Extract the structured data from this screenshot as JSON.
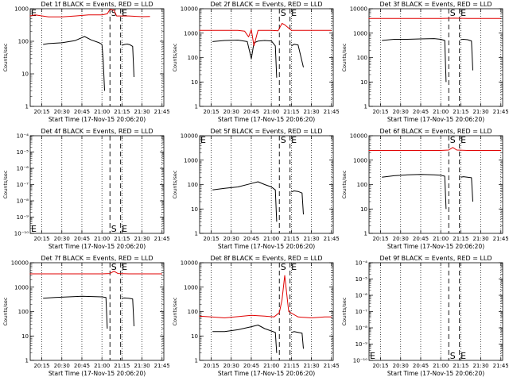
{
  "figure": {
    "xtick_labels": [
      "20:15",
      "20:30",
      "20:45",
      "21:00",
      "21:15",
      "21:30",
      "21:45"
    ],
    "xlabel": "Start Time (17-Nov-15 20:06:20)",
    "ylabel": "Counts/sec"
  },
  "colors": {
    "events": "#000000",
    "lld": "#e00000"
  },
  "chart_data": [
    {
      "type": "line",
      "title": "Det 1f BLACK = Events, RED = LLD",
      "xlim": [
        "20:06:20",
        "21:46:20"
      ],
      "yscale": "log",
      "ylim": [
        1,
        1000
      ],
      "yticks": [
        1,
        10,
        100,
        1000
      ],
      "ytick_labels": [
        "1",
        "10",
        "100",
        "1000"
      ],
      "markers": [
        {
          "label": "S",
          "x": "21:06"
        },
        {
          "label": "E",
          "x": "21:14"
        }
      ],
      "marker_label_position": "top",
      "series": [
        {
          "color": "#000000",
          "x": [
            "20:16",
            "20:20",
            "20:30",
            "20:40",
            "20:47",
            "20:52",
            "20:58",
            "21:00",
            "21:01",
            "21:02",
            "21:03",
            "21:04",
            "21:05",
            "21:09",
            "21:11",
            "21:13",
            "21:15",
            "21:17",
            "21:19",
            "21:21",
            "21:23",
            "21:24"
          ],
          "y": [
            80,
            85,
            90,
            105,
            140,
            110,
            90,
            80,
            25,
            3,
            null,
            null,
            null,
            null,
            null,
            null,
            75,
            80,
            82,
            78,
            70,
            8
          ]
        },
        {
          "color": "#e00000",
          "x": [
            "20:06",
            "20:10",
            "20:20",
            "20:30",
            "20:40",
            "20:50",
            "21:00",
            "21:04",
            "21:06",
            "21:09",
            "21:11",
            "21:14",
            "21:20",
            "21:30",
            "21:36"
          ],
          "y": [
            600,
            650,
            560,
            560,
            600,
            650,
            650,
            700,
            950,
            900,
            600,
            600,
            600,
            570,
            580
          ]
        }
      ]
    },
    {
      "type": "line",
      "title": "Det 2f BLACK = Events, RED = LLD",
      "xlim": [
        "20:06:20",
        "21:46:20"
      ],
      "yscale": "log",
      "ylim": [
        1,
        10000
      ],
      "yticks": [
        1,
        10,
        100,
        1000,
        10000
      ],
      "ytick_labels": [
        "1",
        "10",
        "100",
        "1000",
        "10000"
      ],
      "markers": [
        {
          "label": "S",
          "x": "21:06"
        },
        {
          "label": "E",
          "x": "21:14"
        }
      ],
      "marker_label_position": "top",
      "series": [
        {
          "color": "#000000",
          "x": [
            "20:16",
            "20:25",
            "20:35",
            "20:42",
            "20:45",
            "20:47",
            "20:50",
            "20:55",
            "21:00",
            "21:03",
            "21:04",
            "21:05",
            "21:15",
            "21:17",
            "21:20",
            "21:24"
          ],
          "y": [
            450,
            500,
            520,
            450,
            90,
            400,
            470,
            500,
            480,
            300,
            15,
            null,
            300,
            350,
            330,
            40
          ]
        },
        {
          "color": "#e00000",
          "x": [
            "20:06",
            "20:20",
            "20:35",
            "20:40",
            "20:43",
            "20:45",
            "20:47",
            "20:50",
            "21:00",
            "21:05",
            "21:08",
            "21:10",
            "21:15",
            "21:30",
            "21:45"
          ],
          "y": [
            1300,
            1300,
            1300,
            1200,
            700,
            1400,
            300,
            1300,
            1300,
            1250,
            2500,
            2200,
            1300,
            1300,
            1300
          ]
        }
      ]
    },
    {
      "type": "line",
      "title": "Det 3f BLACK = Events, RED = LLD",
      "xlim": [
        "20:06:20",
        "21:46:20"
      ],
      "yscale": "log",
      "ylim": [
        1,
        10000
      ],
      "yticks": [
        1,
        10,
        100,
        1000,
        10000
      ],
      "ytick_labels": [
        "1",
        "10",
        "100",
        "1000",
        "10000"
      ],
      "markers": [
        {
          "label": "S",
          "x": "21:06"
        },
        {
          "label": "E",
          "x": "21:14"
        }
      ],
      "marker_label_position": "top",
      "series": [
        {
          "color": "#000000",
          "x": [
            "20:16",
            "20:25",
            "20:35",
            "20:45",
            "20:55",
            "21:00",
            "21:03",
            "21:04",
            "21:05",
            "21:15",
            "21:17",
            "21:20",
            "21:23",
            "21:24"
          ],
          "y": [
            500,
            560,
            560,
            580,
            600,
            560,
            500,
            10,
            null,
            550,
            560,
            540,
            480,
            30
          ]
        },
        {
          "color": "#e00000",
          "x": [
            "20:06",
            "20:30",
            "21:00",
            "21:10",
            "21:20",
            "21:45"
          ],
          "y": [
            4000,
            4000,
            4000,
            4100,
            4000,
            4000
          ]
        }
      ]
    },
    {
      "type": "line",
      "title": "Det 4f BLACK = Events, RED = LLD",
      "xlim": [
        "20:06:20",
        "21:46:20"
      ],
      "yscale": "log",
      "ylim": [
        1e-10,
        0.0001
      ],
      "yticks": [
        1e-10,
        1e-09,
        1e-08,
        1e-07,
        1e-06,
        1e-05,
        0.0001
      ],
      "ytick_labels": [
        "10⁻¹⁰",
        "10⁻⁹",
        "10⁻⁸",
        "10⁻⁷",
        "10⁻⁶",
        "10⁻⁵",
        "10⁻⁴"
      ],
      "markers": [
        {
          "label": "S",
          "x": "21:06"
        },
        {
          "label": "E",
          "x": "21:14"
        }
      ],
      "marker_label_position": "bottom",
      "series": []
    },
    {
      "type": "line",
      "title": "Det 5f BLACK = Events, RED = LLD",
      "xlim": [
        "20:06:20",
        "21:46:20"
      ],
      "yscale": "log",
      "ylim": [
        1,
        10000
      ],
      "yticks": [
        1,
        10,
        100,
        1000,
        10000
      ],
      "ytick_labels": [
        "1",
        "10",
        "100",
        "1000",
        "10000"
      ],
      "markers": [
        {
          "label": "S",
          "x": "21:06"
        },
        {
          "label": "E",
          "x": "21:14"
        }
      ],
      "marker_label_position": "top",
      "series": [
        {
          "color": "#000000",
          "x": [
            "20:16",
            "20:25",
            "20:35",
            "20:45",
            "20:50",
            "20:55",
            "21:00",
            "21:03",
            "21:04",
            "21:05",
            "21:15",
            "21:17",
            "21:20",
            "21:23",
            "21:24"
          ],
          "y": [
            60,
            70,
            80,
            110,
            130,
            100,
            80,
            60,
            3,
            null,
            50,
            55,
            52,
            45,
            6
          ]
        }
      ]
    },
    {
      "type": "line",
      "title": "Det 6f BLACK = Events, RED = LLD",
      "xlim": [
        "20:06:20",
        "21:46:20"
      ],
      "yscale": "log",
      "ylim": [
        1,
        10000
      ],
      "yticks": [
        1,
        10,
        100,
        1000,
        10000
      ],
      "ytick_labels": [
        "1",
        "10",
        "100",
        "1000",
        "10000"
      ],
      "markers": [
        {
          "label": "S",
          "x": "21:06"
        },
        {
          "label": "E",
          "x": "21:14"
        }
      ],
      "marker_label_position": "top",
      "series": [
        {
          "color": "#000000",
          "x": [
            "20:16",
            "20:25",
            "20:35",
            "20:45",
            "20:55",
            "21:00",
            "21:03",
            "21:04",
            "21:05",
            "21:15",
            "21:17",
            "21:20",
            "21:23",
            "21:24"
          ],
          "y": [
            200,
            230,
            250,
            260,
            250,
            240,
            220,
            10,
            null,
            200,
            210,
            200,
            190,
            20
          ]
        },
        {
          "color": "#e00000",
          "x": [
            "20:06",
            "20:30",
            "21:00",
            "21:06",
            "21:09",
            "21:12",
            "21:20",
            "21:45"
          ],
          "y": [
            2500,
            2500,
            2500,
            2600,
            3300,
            2600,
            2500,
            2500
          ]
        }
      ]
    },
    {
      "type": "line",
      "title": "Det 7f BLACK = Events, RED = LLD",
      "xlim": [
        "20:06:20",
        "21:46:20"
      ],
      "yscale": "log",
      "ylim": [
        1,
        10000
      ],
      "yticks": [
        1,
        10,
        100,
        1000,
        10000
      ],
      "ytick_labels": [
        "1",
        "10",
        "100",
        "1000",
        "10000"
      ],
      "markers": [
        {
          "label": "S",
          "x": "21:06"
        },
        {
          "label": "E",
          "x": "21:14"
        }
      ],
      "marker_label_position": "top",
      "series": [
        {
          "color": "#000000",
          "x": [
            "20:16",
            "20:25",
            "20:35",
            "20:45",
            "20:55",
            "21:00",
            "21:03",
            "21:04",
            "21:05",
            "21:15",
            "21:17",
            "21:20",
            "21:23",
            "21:24"
          ],
          "y": [
            350,
            380,
            400,
            420,
            410,
            400,
            380,
            20,
            null,
            350,
            360,
            350,
            330,
            25
          ]
        },
        {
          "color": "#e00000",
          "x": [
            "20:06",
            "20:30",
            "21:00",
            "21:06",
            "21:09",
            "21:12",
            "21:20",
            "21:45"
          ],
          "y": [
            3500,
            3500,
            3500,
            3600,
            4500,
            3600,
            3500,
            3500
          ]
        }
      ]
    },
    {
      "type": "line",
      "title": "Det 8f BLACK = Events, RED = LLD",
      "xlim": [
        "20:06:20",
        "21:46:20"
      ],
      "yscale": "log",
      "ylim": [
        1,
        10000
      ],
      "yticks": [
        1,
        10,
        100,
        1000,
        10000
      ],
      "ytick_labels": [
        "1",
        "10",
        "100",
        "1000",
        "10000"
      ],
      "markers": [
        {
          "label": "S",
          "x": "21:06"
        },
        {
          "label": "E",
          "x": "21:14"
        }
      ],
      "marker_label_position": "top",
      "series": [
        {
          "color": "#000000",
          "x": [
            "20:16",
            "20:25",
            "20:35",
            "20:45",
            "20:50",
            "20:55",
            "21:00",
            "21:03",
            "21:04",
            "21:05",
            "21:15",
            "21:17",
            "21:20",
            "21:23",
            "21:24"
          ],
          "y": [
            15,
            15,
            18,
            24,
            28,
            20,
            16,
            14,
            2,
            null,
            14,
            15,
            14,
            13,
            3
          ]
        },
        {
          "color": "#e00000",
          "x": [
            "20:06",
            "20:15",
            "20:25",
            "20:35",
            "20:45",
            "20:55",
            "21:02",
            "21:06",
            "21:08",
            "21:10",
            "21:13",
            "21:20",
            "21:30",
            "21:40",
            "21:45"
          ],
          "y": [
            65,
            60,
            55,
            62,
            70,
            65,
            60,
            90,
            300,
            3000,
            100,
            60,
            55,
            60,
            60
          ]
        }
      ]
    },
    {
      "type": "line",
      "title": "Det 9f BLACK = Events, RED = LLD",
      "xlim": [
        "20:06:20",
        "21:46:20"
      ],
      "yscale": "log",
      "ylim": [
        1e-10,
        0.0001
      ],
      "yticks": [
        1e-10,
        1e-09,
        1e-08,
        1e-07,
        1e-06,
        1e-05,
        0.0001
      ],
      "ytick_labels": [
        "10⁻¹⁰",
        "10⁻⁹",
        "10⁻⁸",
        "10⁻⁷",
        "10⁻⁶",
        "10⁻⁵",
        "10⁻⁴"
      ],
      "markers": [
        {
          "label": "S",
          "x": "21:06"
        },
        {
          "label": "E",
          "x": "21:14"
        }
      ],
      "marker_label_position": "bottom",
      "series": []
    }
  ]
}
